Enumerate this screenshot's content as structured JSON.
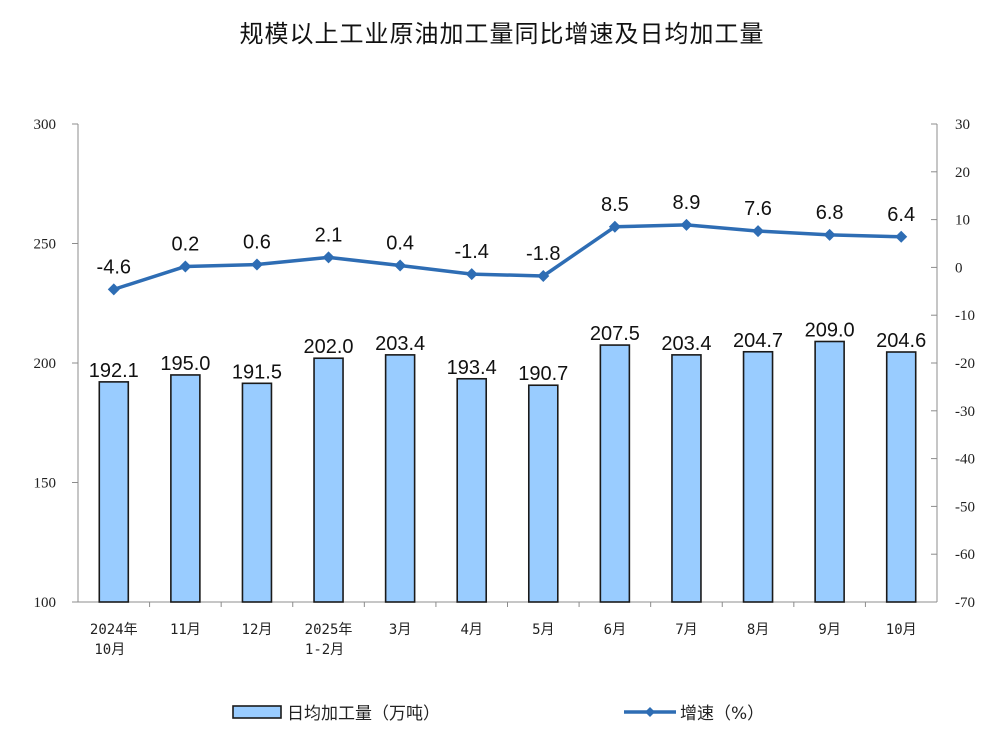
{
  "chart_data": {
    "type": "bar+line",
    "title": "规模以上工业原油加工量同比增速及日均加工量",
    "categories": [
      "2024年\n10月",
      "11月",
      "12月",
      "2025年\n1-2月",
      "3月",
      "4月",
      "5月",
      "6月",
      "7月",
      "8月",
      "9月",
      "10月"
    ],
    "category_lines": [
      [
        "2024年",
        "10月"
      ],
      [
        "11月"
      ],
      [
        "12月"
      ],
      [
        "2025年",
        "1-2月"
      ],
      [
        "3月"
      ],
      [
        "4月"
      ],
      [
        "5月"
      ],
      [
        "6月"
      ],
      [
        "7月"
      ],
      [
        "8月"
      ],
      [
        "9月"
      ],
      [
        "10月"
      ]
    ],
    "series": [
      {
        "name": "日均加工量（万吨）",
        "type": "bar",
        "axis": "left",
        "color": "#99CCFF",
        "border": "#1a1a1a",
        "values": [
          192.1,
          195.0,
          191.5,
          202.0,
          203.4,
          193.4,
          190.7,
          207.5,
          203.4,
          204.7,
          209.0,
          204.6
        ],
        "labels": [
          "192.1",
          "195.0",
          "191.5",
          "202.0",
          "203.4",
          "193.4",
          "190.7",
          "207.5",
          "203.4",
          "204.7",
          "209.0",
          "204.6"
        ]
      },
      {
        "name": "增速（%）",
        "type": "line",
        "axis": "right",
        "color": "#2E6DB4",
        "marker": "diamond",
        "values": [
          -4.6,
          0.2,
          0.6,
          2.1,
          0.4,
          -1.4,
          -1.8,
          8.5,
          8.9,
          7.6,
          6.8,
          6.4
        ],
        "labels": [
          "-4.6",
          "0.2",
          "0.6",
          "2.1",
          "0.4",
          "-1.4",
          "-1.8",
          "8.5",
          "8.9",
          "7.6",
          "6.8",
          "6.4"
        ]
      }
    ],
    "left_axis": {
      "ylim": [
        100,
        300
      ],
      "ticks": [
        100,
        150,
        200,
        250,
        300
      ],
      "label": ""
    },
    "right_axis": {
      "ylim": [
        -70,
        30
      ],
      "ticks": [
        30,
        20,
        10,
        0,
        -10,
        -20,
        -30,
        -40,
        -50,
        -60,
        -70
      ],
      "label": ""
    },
    "xlabel": "",
    "grid": false,
    "legend": {
      "position": "bottom",
      "entries": [
        "日均加工量（万吨）",
        "增速（%）"
      ]
    }
  }
}
